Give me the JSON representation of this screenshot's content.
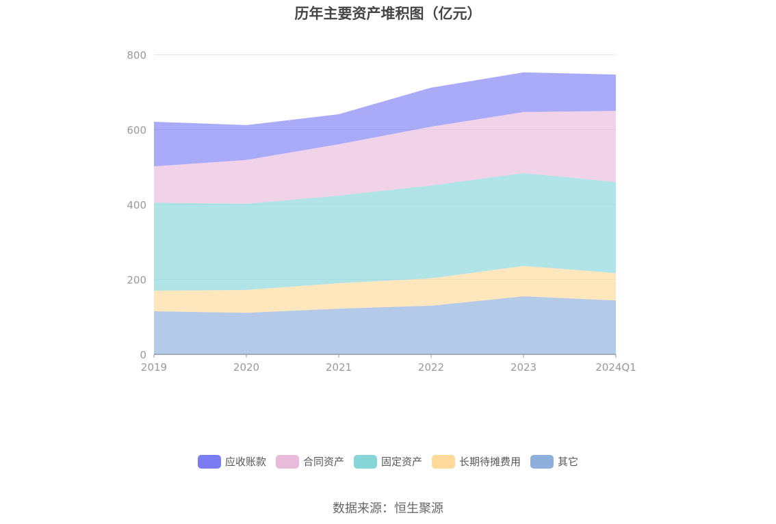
{
  "chart_data": {
    "type": "area",
    "stacked": true,
    "title": "历年主要资产堆积图（亿元）",
    "categories": [
      "2019",
      "2020",
      "2021",
      "2022",
      "2023",
      "2024Q1"
    ],
    "ylim": [
      0,
      800
    ],
    "yticks": [
      0,
      200,
      400,
      600,
      800
    ],
    "grid": true,
    "legend_position": "bottom",
    "series": [
      {
        "name": "其它",
        "color": "#8eaedc",
        "values": [
          115,
          111,
          122,
          130,
          155,
          144
        ]
      },
      {
        "name": "长期待摊费用",
        "color": "#fdd99a",
        "values": [
          55,
          61,
          68,
          73,
          81,
          73
        ]
      },
      {
        "name": "固定资产",
        "color": "#86d6d8",
        "values": [
          235,
          230,
          234,
          248,
          248,
          243
        ]
      },
      {
        "name": "合同资产",
        "color": "#e8bbdb",
        "values": [
          97,
          117,
          137,
          157,
          163,
          190
        ]
      },
      {
        "name": "应收账款",
        "color": "#7b7cf4",
        "values": [
          119,
          93,
          80,
          104,
          106,
          97
        ]
      }
    ],
    "legend_order": [
      4,
      3,
      2,
      1,
      0
    ]
  },
  "source": "数据来源：恒生聚源"
}
